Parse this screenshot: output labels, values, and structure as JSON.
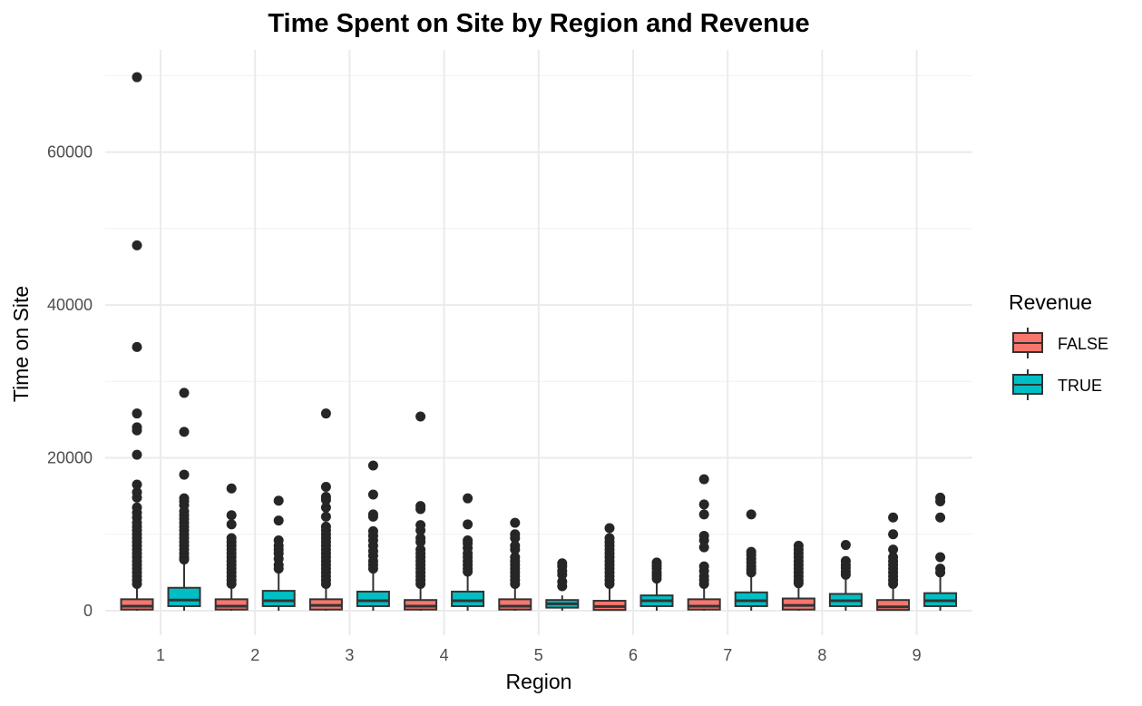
{
  "chart_data": {
    "type": "boxplot",
    "title": "Time Spent on Site by Region and Revenue",
    "xlabel": "Region",
    "ylabel": "Time on Site",
    "categories": [
      "1",
      "2",
      "3",
      "4",
      "5",
      "6",
      "7",
      "8",
      "9"
    ],
    "y_ticks": [
      0,
      20000,
      40000,
      60000
    ],
    "y_tick_labels": [
      "0",
      "20000",
      "40000",
      "60000"
    ],
    "ylim": [
      -3500,
      73000
    ],
    "grid": true,
    "legend": {
      "title": "Revenue",
      "placement": "right"
    },
    "series": [
      {
        "name": "FALSE",
        "color": "#F8766D",
        "boxes": [
          {
            "q1": 150,
            "median": 600,
            "q3": 1500,
            "whisker_low": 0,
            "whisker_high": 3300,
            "outliers": [
              69800,
              47800,
              34500,
              25800,
              24000,
              23600,
              20400,
              16500,
              15500,
              14800,
              13500,
              12800,
              12200,
              11500,
              11000,
              10500,
              10000,
              9500,
              9000,
              8500,
              8000,
              7500,
              7000,
              6500,
              6000,
              5500,
              5000,
              4500,
              4000,
              3500
            ]
          },
          {
            "q1": 150,
            "median": 600,
            "q3": 1500,
            "whisker_low": 0,
            "whisker_high": 3200,
            "outliers": [
              16000,
              12500,
              11300,
              9500,
              9000,
              8500,
              8000,
              7500,
              7000,
              6500,
              6000,
              5500,
              5000,
              4500,
              4000,
              3500
            ]
          },
          {
            "q1": 150,
            "median": 700,
            "q3": 1500,
            "whisker_low": 0,
            "whisker_high": 3300,
            "outliers": [
              25800,
              16200,
              14900,
              14500,
              13500,
              12300,
              11000,
              10500,
              10000,
              9500,
              9000,
              8500,
              8000,
              7500,
              7000,
              6500,
              6000,
              5500,
              5000,
              4500,
              4000,
              3500
            ]
          },
          {
            "q1": 150,
            "median": 600,
            "q3": 1400,
            "whisker_low": 0,
            "whisker_high": 3200,
            "outliers": [
              25400,
              13700,
              13300,
              11200,
              10500,
              9500,
              9000,
              8000,
              7500,
              7000,
              6500,
              6000,
              5500,
              5000,
              4500,
              4000,
              3500
            ]
          },
          {
            "q1": 150,
            "median": 600,
            "q3": 1500,
            "whisker_low": 0,
            "whisker_high": 3200,
            "outliers": [
              11500,
              10000,
              9500,
              8500,
              8000,
              7000,
              6500,
              6000,
              5500,
              5000,
              4500,
              4000,
              3500
            ]
          },
          {
            "q1": 100,
            "median": 550,
            "q3": 1300,
            "whisker_low": 0,
            "whisker_high": 3000,
            "outliers": [
              10800,
              9500,
              9000,
              8500,
              8000,
              7500,
              7000,
              6500,
              6000,
              5500,
              5000,
              4500,
              4000,
              3500
            ]
          },
          {
            "q1": 150,
            "median": 600,
            "q3": 1500,
            "whisker_low": 0,
            "whisker_high": 3300,
            "outliers": [
              17200,
              13900,
              12600,
              9800,
              9200,
              8300,
              5800,
              5200,
              4500,
              4000,
              3500
            ]
          },
          {
            "q1": 150,
            "median": 700,
            "q3": 1600,
            "whisker_low": 0,
            "whisker_high": 3300,
            "outliers": [
              8500,
              8000,
              7500,
              7000,
              6500,
              6000,
              5500,
              5000,
              4500,
              4000,
              3600
            ]
          },
          {
            "q1": 100,
            "median": 500,
            "q3": 1400,
            "whisker_low": 0,
            "whisker_high": 3100,
            "outliers": [
              12200,
              10000,
              8000,
              7000,
              6500,
              6000,
              5500,
              5000,
              4500,
              4000,
              3500
            ]
          }
        ]
      },
      {
        "name": "TRUE",
        "color": "#00BFC4",
        "boxes": [
          {
            "q1": 600,
            "median": 1400,
            "q3": 3000,
            "whisker_low": 0,
            "whisker_high": 6400,
            "outliers": [
              28500,
              23400,
              17800,
              14700,
              14300,
              13800,
              13000,
              12500,
              12000,
              11500,
              11000,
              10500,
              10000,
              9500,
              9000,
              8500,
              8000,
              7500,
              7000,
              6700
            ]
          },
          {
            "q1": 600,
            "median": 1300,
            "q3": 2600,
            "whisker_low": 0,
            "whisker_high": 5000,
            "outliers": [
              14400,
              11800,
              9200,
              8500,
              8000,
              7500,
              6800,
              6000,
              5500
            ]
          },
          {
            "q1": 600,
            "median": 1300,
            "q3": 2500,
            "whisker_low": 0,
            "whisker_high": 5000,
            "outliers": [
              19000,
              15200,
              12600,
              12300,
              10400,
              9800,
              9200,
              8500,
              7800,
              7200,
              6500,
              6000,
              5500
            ]
          },
          {
            "q1": 600,
            "median": 1300,
            "q3": 2500,
            "whisker_low": 0,
            "whisker_high": 4800,
            "outliers": [
              14700,
              11300,
              9200,
              8800,
              8200,
              7500,
              7000,
              6500,
              6000,
              5500,
              5100
            ]
          },
          {
            "q1": 400,
            "median": 900,
            "q3": 1400,
            "whisker_low": 0,
            "whisker_high": 2000,
            "outliers": [
              6200,
              5800,
              5200,
              4700,
              3800,
              3200
            ]
          },
          {
            "q1": 600,
            "median": 1300,
            "q3": 2000,
            "whisker_low": 0,
            "whisker_high": 3800,
            "outliers": [
              6300,
              5900,
              5500,
              5000,
              4600,
              4200
            ]
          },
          {
            "q1": 600,
            "median": 1300,
            "q3": 2400,
            "whisker_low": 0,
            "whisker_high": 4700,
            "outliers": [
              12600,
              7700,
              7300,
              6800,
              6300,
              5800,
              5400,
              5000
            ]
          },
          {
            "q1": 600,
            "median": 1300,
            "q3": 2200,
            "whisker_low": 0,
            "whisker_high": 4400,
            "outliers": [
              8600,
              6500,
              6000,
              5600,
              5100,
              4700
            ]
          },
          {
            "q1": 600,
            "median": 1300,
            "q3": 2300,
            "whisker_low": 0,
            "whisker_high": 4500,
            "outliers": [
              14800,
              14300,
              12200,
              7000,
              5500,
              5000
            ]
          }
        ]
      }
    ]
  }
}
